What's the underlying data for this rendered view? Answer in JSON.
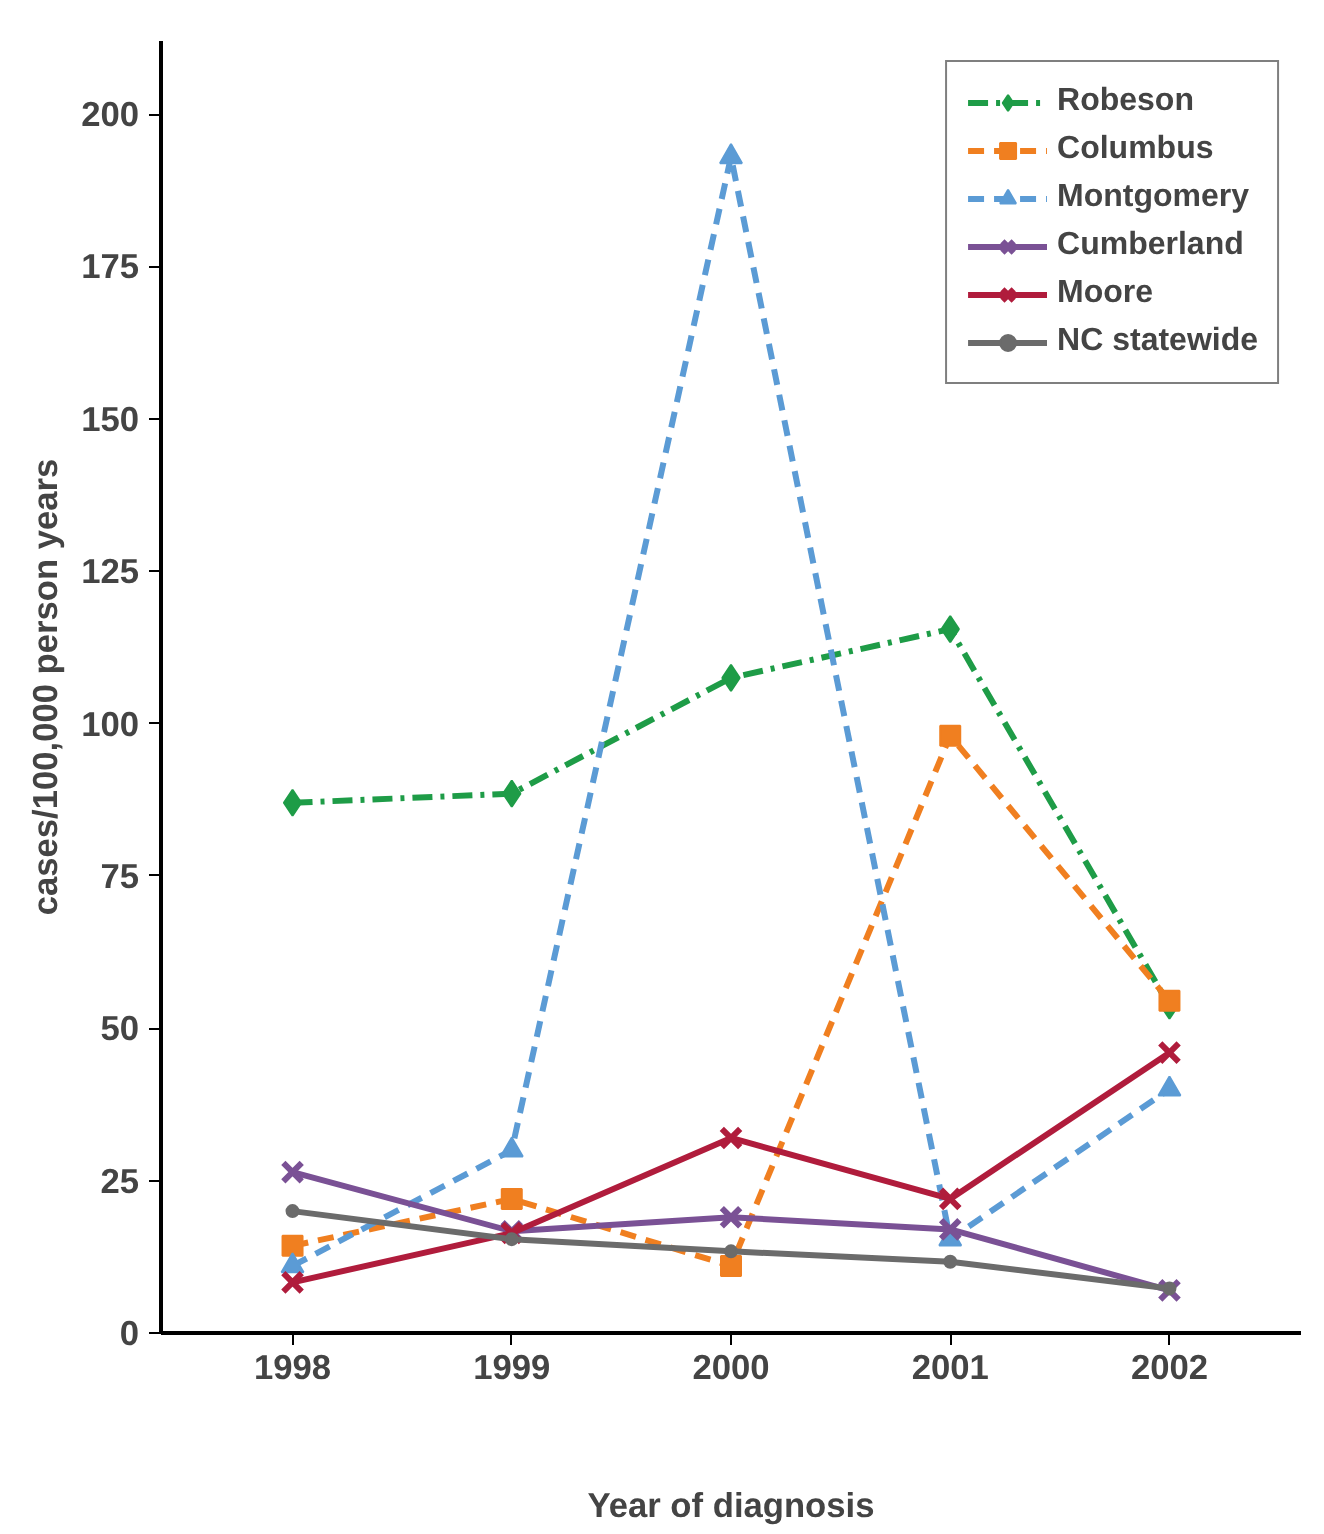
{
  "chart_data": {
    "type": "line",
    "xlabel": "Year of diagnosis",
    "ylabel": "cases/100,000 person years",
    "categories": [
      "1998",
      "1999",
      "2000",
      "2001",
      "2002"
    ],
    "ylim": [
      0,
      212
    ],
    "yticks": [
      0,
      25,
      50,
      75,
      100,
      125,
      150,
      175,
      200
    ],
    "grid": false,
    "legend": "top right",
    "series": [
      {
        "name": "Robeson",
        "color": "#1e9c47",
        "marker": "diamond",
        "line_style": "dashdot",
        "values": [
          87,
          88.5,
          107.5,
          115.5,
          53.7
        ]
      },
      {
        "name": "Columbus",
        "color": "#f07f20",
        "marker": "square",
        "line_style": "dashed",
        "values": [
          14.3,
          22,
          11,
          98,
          54.5
        ]
      },
      {
        "name": "Montgomery",
        "color": "#5b9bd5",
        "marker": "triangle",
        "line_style": "dashed",
        "values": [
          11,
          30,
          193,
          15.4,
          40
        ]
      },
      {
        "name": "Cumberland",
        "color": "#7a5195",
        "marker": "cross",
        "line_style": "solid",
        "values": [
          26.4,
          16.7,
          19,
          17,
          7
        ]
      },
      {
        "name": "Moore",
        "color": "#b01c3c",
        "marker": "cross",
        "line_style": "solid",
        "values": [
          8.3,
          16.4,
          32,
          22,
          46
        ]
      },
      {
        "name": "NC statewide",
        "color": "#6b6b6b",
        "marker": "circle",
        "line_style": "solid",
        "values": [
          20,
          15.4,
          13.4,
          11.7,
          7.3
        ]
      }
    ]
  }
}
